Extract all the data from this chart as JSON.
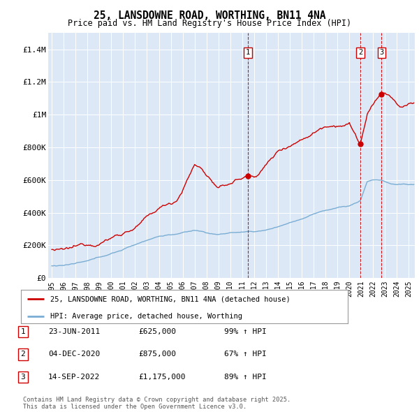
{
  "title": "25, LANSDOWNE ROAD, WORTHING, BN11 4NA",
  "subtitle": "Price paid vs. HM Land Registry's House Price Index (HPI)",
  "plot_bg_color": "#dce8f5",
  "red_color": "#cc0000",
  "blue_color": "#7aadd4",
  "ylim": [
    0,
    1500000
  ],
  "yticks": [
    0,
    200000,
    400000,
    600000,
    800000,
    1000000,
    1200000,
    1400000
  ],
  "ytick_labels": [
    "£0",
    "£200K",
    "£400K",
    "£600K",
    "£800K",
    "£1M",
    "£1.2M",
    "£1.4M"
  ],
  "xmin": 1994.7,
  "xmax": 2025.5,
  "sales": [
    {
      "label": "1",
      "date": 2011.47,
      "price": 625000
    },
    {
      "label": "2",
      "date": 2020.92,
      "price": 875000
    },
    {
      "label": "3",
      "date": 2022.7,
      "price": 1175000
    }
  ],
  "legend_line1": "25, LANSDOWNE ROAD, WORTHING, BN11 4NA (detached house)",
  "legend_line2": "HPI: Average price, detached house, Worthing",
  "table_rows": [
    {
      "num": "1",
      "date": "23-JUN-2011",
      "price": "£625,000",
      "hpi": "99% ↑ HPI"
    },
    {
      "num": "2",
      "date": "04-DEC-2020",
      "price": "£875,000",
      "hpi": "67% ↑ HPI"
    },
    {
      "num": "3",
      "date": "14-SEP-2022",
      "price": "£1,175,000",
      "hpi": "89% ↑ HPI"
    }
  ],
  "footer": "Contains HM Land Registry data © Crown copyright and database right 2025.\nThis data is licensed under the Open Government Licence v3.0."
}
